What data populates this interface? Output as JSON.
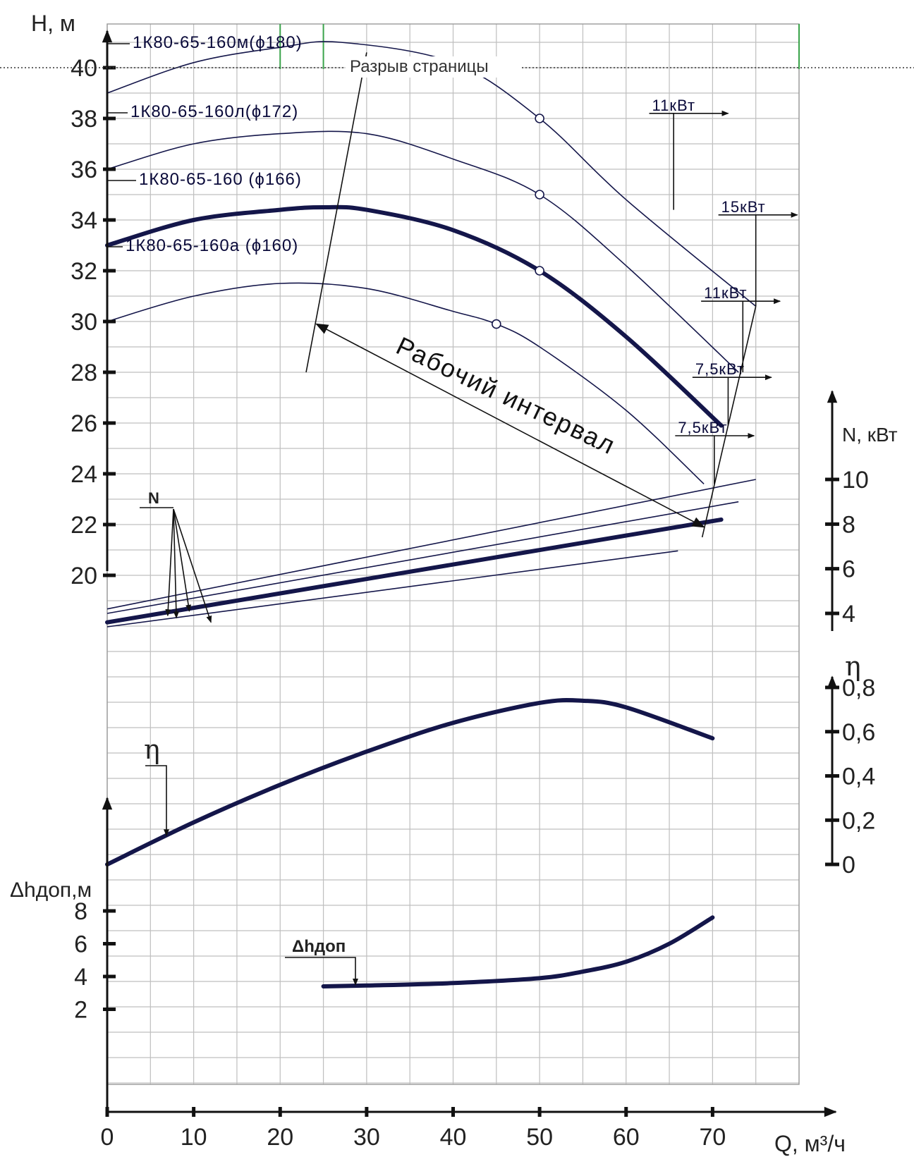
{
  "page": {
    "break_label": "Разрыв страницы"
  },
  "chart_data": {
    "type": "line",
    "x": {
      "label": "Q, м³/ч",
      "range": [
        0,
        80
      ],
      "tick_labels": [
        0,
        10,
        20,
        30,
        40,
        50,
        60,
        70
      ],
      "minor_step": 5
    },
    "axes": {
      "H": {
        "label": "H, м",
        "range": [
          16,
          42
        ],
        "tick_labels": [
          20,
          22,
          24,
          26,
          28,
          30,
          32,
          34,
          36,
          38,
          40
        ]
      },
      "N": {
        "label": "N, кВт",
        "range": [
          0,
          12
        ],
        "tick_labels": [
          4,
          6,
          8,
          10
        ]
      },
      "eta": {
        "label": "η",
        "range": [
          0,
          0.9
        ],
        "tick_labels": [
          "0",
          "0,2",
          "0,4",
          "0,6",
          "0,8"
        ]
      },
      "dh": {
        "label": "Δhдоп,м",
        "range": [
          0,
          10
        ],
        "tick_labels": [
          2,
          4,
          6,
          8
        ]
      }
    },
    "series": [
      {
        "name": "1К80-65-160м(ϕ180)",
        "axis": "H",
        "bold": false,
        "x": [
          0,
          10,
          20,
          27,
          40,
          50,
          60,
          75
        ],
        "y": [
          39,
          40.2,
          40.8,
          41.0,
          40.2,
          38.0,
          34.8,
          30.6
        ],
        "markers": [
          [
            50,
            38.0
          ]
        ]
      },
      {
        "name": "1К80-65-160л(ϕ172)",
        "axis": "H",
        "bold": false,
        "x": [
          0,
          10,
          20,
          30,
          40,
          50,
          60,
          73
        ],
        "y": [
          36,
          37.0,
          37.4,
          37.4,
          36.4,
          35.0,
          32.2,
          28.0
        ],
        "markers": [
          [
            50,
            35.0
          ]
        ]
      },
      {
        "name": "1К80-65-160 (ϕ166)",
        "axis": "H",
        "bold": true,
        "x": [
          0,
          10,
          20,
          25,
          30,
          40,
          50,
          60,
          71
        ],
        "y": [
          33,
          34.0,
          34.4,
          34.5,
          34.4,
          33.6,
          32.0,
          29.4,
          25.9
        ],
        "markers": [
          [
            50,
            32.0
          ]
        ]
      },
      {
        "name": "1К80-65-160а (ϕ160)",
        "axis": "H",
        "bold": false,
        "x": [
          0,
          10,
          20,
          30,
          40,
          45,
          50,
          60,
          69
        ],
        "y": [
          30,
          31.0,
          31.5,
          31.3,
          30.4,
          29.9,
          29.0,
          26.5,
          23.6
        ],
        "markers": [
          [
            45,
            29.9
          ]
        ]
      },
      {
        "name": "",
        "axis": "N",
        "bold": false,
        "x": [
          0,
          75
        ],
        "y": [
          4.2,
          10.0
        ]
      },
      {
        "name": "",
        "axis": "N",
        "bold": false,
        "x": [
          0,
          73
        ],
        "y": [
          4.0,
          9.0
        ]
      },
      {
        "name": "",
        "axis": "N",
        "bold": true,
        "x": [
          0,
          71
        ],
        "y": [
          3.6,
          8.2
        ]
      },
      {
        "name": "",
        "axis": "N",
        "bold": false,
        "x": [
          0,
          66
        ],
        "y": [
          3.4,
          6.8
        ]
      },
      {
        "name": "η",
        "axis": "eta",
        "bold": true,
        "x": [
          0,
          10,
          20,
          30,
          40,
          50,
          55,
          60,
          70
        ],
        "y": [
          0,
          0.19,
          0.36,
          0.51,
          0.64,
          0.73,
          0.74,
          0.71,
          0.57
        ]
      },
      {
        "name": "Δhдоп",
        "axis": "dh",
        "bold": true,
        "x": [
          25,
          30,
          40,
          50,
          55,
          60,
          65,
          70
        ],
        "y": [
          3.4,
          3.45,
          3.6,
          3.9,
          4.3,
          4.9,
          6.0,
          7.6
        ]
      }
    ],
    "annotations": {
      "power_labels": [
        {
          "text": "11кВт",
          "x": 63,
          "H": 38.2
        },
        {
          "text": "15кВт",
          "x": 71,
          "H": 34.2
        },
        {
          "text": "11кВт",
          "x": 69,
          "H": 30.8
        },
        {
          "text": "7,5кВт",
          "x": 68,
          "H": 27.8
        },
        {
          "text": "7,5кВт",
          "x": 66,
          "H": 25.5
        }
      ],
      "work_range_label": "Рабочий интервал",
      "N_label": "N",
      "eta_label": "η",
      "dh_label": "Δhдоп"
    },
    "grid": true
  }
}
